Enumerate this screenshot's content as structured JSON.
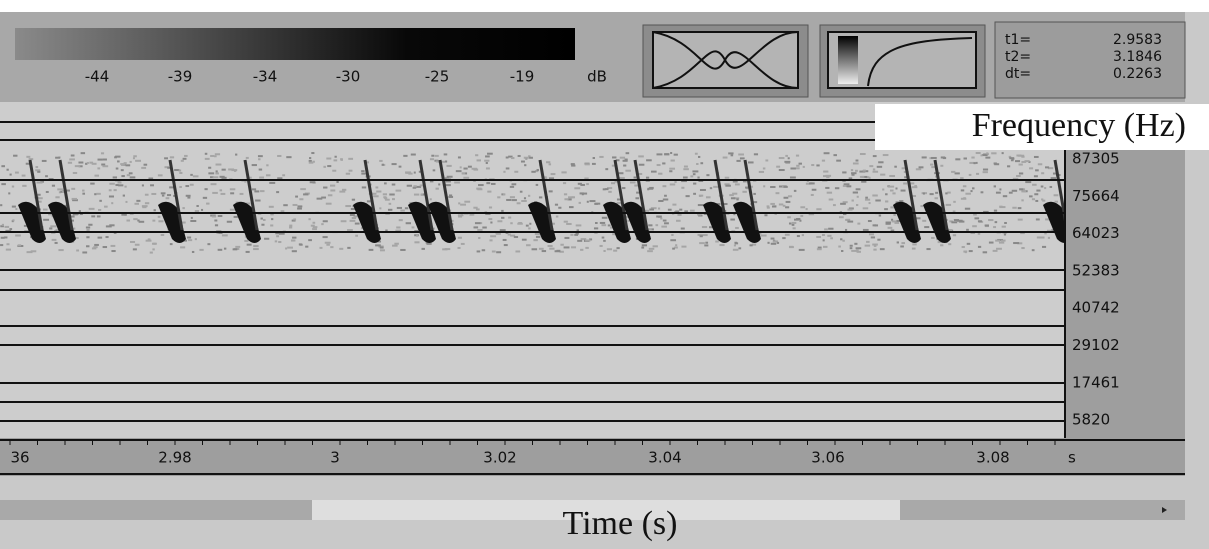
{
  "header": {
    "db_scale": {
      "labels": [
        "-44",
        "-39",
        "-34",
        "-30",
        "-25",
        "-19"
      ],
      "unit": "dB"
    },
    "cursors": {
      "names": [
        "t1=",
        "t2=",
        "dt="
      ],
      "values": [
        "2.9583",
        "3.1846",
        "0.2263"
      ]
    }
  },
  "frequency_axis": {
    "title": "Frequency (Hz)",
    "ticks": [
      "87305",
      "75664",
      "64023",
      "52383",
      "40742",
      "29102",
      "17461",
      "5820"
    ]
  },
  "time_axis": {
    "title": "Time (s)",
    "ticks": [
      "36",
      "2.98",
      "3",
      "3.02",
      "3.04",
      "3.06",
      "3.08"
    ],
    "unit": "s"
  }
}
